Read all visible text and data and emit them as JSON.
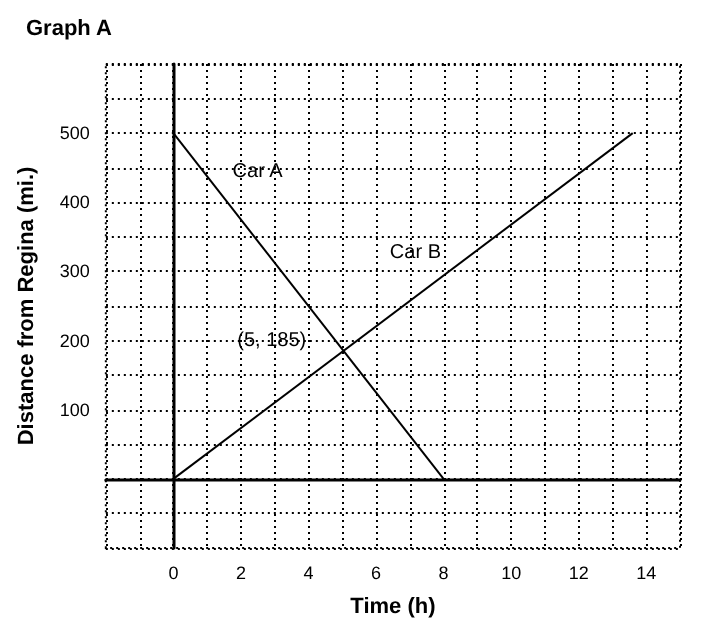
{
  "chart_data": {
    "type": "line",
    "title": "Graph A",
    "xlabel": "Time (h)",
    "ylabel": "Distance from Regina (mi.)",
    "series": [
      {
        "name": "Car A",
        "color": "#000000",
        "x": [
          0,
          8
        ],
        "values": [
          500,
          0
        ]
      },
      {
        "name": "Car B",
        "color": "#000000",
        "x": [
          0,
          13.6
        ],
        "values": [
          0,
          500
        ]
      }
    ],
    "annotations": [
      {
        "text": "(5, 185)",
        "x": 5,
        "y": 185
      }
    ],
    "xlim": [
      -2,
      15
    ],
    "xticks": [
      {
        "value": -2,
        "label": null
      },
      {
        "value": -1,
        "label": null
      },
      0,
      {
        "value": 1,
        "label": null
      },
      2,
      {
        "value": 3,
        "label": null
      },
      4,
      {
        "value": 5,
        "label": null
      },
      6,
      {
        "value": 7,
        "label": null
      },
      8,
      {
        "value": 9,
        "label": null
      },
      10,
      {
        "value": 11,
        "label": null
      },
      12,
      {
        "value": 13,
        "label": null
      },
      14,
      {
        "value": 15,
        "label": null
      }
    ],
    "ylim": [
      -100,
      600
    ],
    "yticks": [
      {
        "value": -100,
        "label": null
      },
      {
        "value": -50,
        "label": null
      },
      {
        "value": 0,
        "label": null
      },
      {
        "value": 50,
        "label": null
      },
      100,
      {
        "value": 150,
        "label": null
      },
      200,
      {
        "value": 250,
        "label": null
      },
      300,
      {
        "value": 350,
        "label": null
      },
      400,
      {
        "value": 450,
        "label": null
      },
      500,
      {
        "value": 550,
        "label": null
      },
      {
        "value": 600,
        "label": null
      }
    ],
    "grid": true,
    "legend": false,
    "marker": "none",
    "line_style": "solid"
  }
}
